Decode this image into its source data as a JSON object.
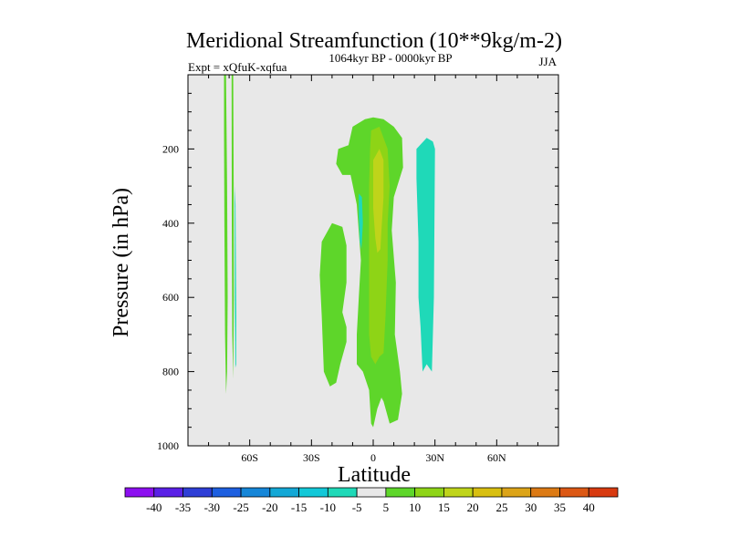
{
  "chart_data": {
    "type": "contour",
    "title": "Meridional Streamfunction (10**9kg/m-2)",
    "subtitle_left": "Expt = xQfuK-xqfua",
    "subtitle_center": "1064kyr BP - 0000kyr BP",
    "subtitle_right": "JJA",
    "xlabel": "Latitude",
    "ylabel": "Pressure (in hPa)",
    "xlim": [
      -90,
      90
    ],
    "ylim": [
      1000,
      0
    ],
    "x_ticks": [
      {
        "value": -60,
        "label": "60S"
      },
      {
        "value": -30,
        "label": "30S"
      },
      {
        "value": 0,
        "label": "0"
      },
      {
        "value": 30,
        "label": "30N"
      },
      {
        "value": 60,
        "label": "60N"
      }
    ],
    "y_ticks": [
      {
        "value": 200,
        "label": "200"
      },
      {
        "value": 400,
        "label": "400"
      },
      {
        "value": 600,
        "label": "600"
      },
      {
        "value": 800,
        "label": "800"
      },
      {
        "value": 1000,
        "label": "1000"
      }
    ],
    "background_color": "#e8e8e8",
    "colorbar": {
      "labels": [
        "-40",
        "-35",
        "-30",
        "-25",
        "-20",
        "-15",
        "-10",
        "-5",
        "5",
        "10",
        "15",
        "20",
        "25",
        "30",
        "35",
        "40"
      ],
      "colors": [
        "#8c0ff0",
        "#5a20e6",
        "#2e3ed6",
        "#1d5fe0",
        "#1586d8",
        "#13a8d6",
        "#12c8d8",
        "#1fd9b8",
        "#e8e8e8",
        "#5ed62a",
        "#8ed416",
        "#bfd41a",
        "#d8bf10",
        "#dca418",
        "#dc7a14",
        "#dc5814",
        "#d83a10"
      ]
    },
    "regions": [
      {
        "level": 5,
        "color": "#5ed62a",
        "points": [
          [
            -72.5,
            0
          ],
          [
            -71.5,
            0
          ],
          [
            -71,
            300
          ],
          [
            -70.7,
            600
          ],
          [
            -71,
            800
          ],
          [
            -71.5,
            860
          ],
          [
            -72,
            700
          ],
          [
            -72.3,
            400
          ],
          [
            -72.5,
            150
          ]
        ]
      },
      {
        "level": 5,
        "color": "#5ed62a",
        "points": [
          [
            -68.8,
            0
          ],
          [
            -68,
            0
          ],
          [
            -67.8,
            300
          ],
          [
            -67.7,
            600
          ],
          [
            -68,
            820
          ],
          [
            -68.5,
            700
          ],
          [
            -68.7,
            400
          ]
        ]
      },
      {
        "level": -5,
        "color": "#1fd9b8",
        "points": [
          [
            -67.3,
            300
          ],
          [
            -66.9,
            350
          ],
          [
            -66.5,
            650
          ],
          [
            -66.6,
            780
          ],
          [
            -67,
            790
          ],
          [
            -67.2,
            600
          ]
        ]
      },
      {
        "level": 5,
        "color": "#5ed62a",
        "points": [
          [
            -17,
            200
          ],
          [
            -12,
            190
          ],
          [
            -10,
            140
          ],
          [
            -4,
            120
          ],
          [
            0,
            115
          ],
          [
            5,
            120
          ],
          [
            10,
            140
          ],
          [
            14,
            170
          ],
          [
            14.5,
            250
          ],
          [
            10,
            330
          ],
          [
            9,
            420
          ],
          [
            11,
            560
          ],
          [
            10.5,
            700
          ],
          [
            13,
            800
          ],
          [
            14,
            860
          ],
          [
            12,
            930
          ],
          [
            8,
            940
          ],
          [
            5,
            880
          ],
          [
            4,
            870
          ],
          [
            2,
            900
          ],
          [
            0,
            950
          ],
          [
            -1,
            940
          ],
          [
            -2,
            850
          ],
          [
            -5,
            800
          ],
          [
            -8,
            780
          ],
          [
            -8,
            700
          ],
          [
            -7,
            600
          ],
          [
            -6,
            500
          ],
          [
            -8,
            350
          ],
          [
            -11,
            270
          ],
          [
            -15,
            270
          ],
          [
            -18,
            240
          ]
        ]
      },
      {
        "level": 5,
        "color": "#5ed62a",
        "points": [
          [
            -25,
            450
          ],
          [
            -20,
            400
          ],
          [
            -15,
            410
          ],
          [
            -13,
            460
          ],
          [
            -13,
            560
          ],
          [
            -15,
            640
          ],
          [
            -13,
            680
          ],
          [
            -13,
            720
          ],
          [
            -16,
            780
          ],
          [
            -18,
            830
          ],
          [
            -21,
            840
          ],
          [
            -24,
            800
          ],
          [
            -25,
            650
          ],
          [
            -26,
            540
          ]
        ]
      },
      {
        "level": -5,
        "color": "#1fd9b8",
        "points": [
          [
            -7,
            320
          ],
          [
            -5.5,
            330
          ],
          [
            -5,
            400
          ],
          [
            -5.7,
            470
          ],
          [
            -6.5,
            450
          ],
          [
            -7,
            380
          ]
        ]
      },
      {
        "level": -5,
        "color": "#1fd9b8",
        "points": [
          [
            21,
            200
          ],
          [
            26,
            170
          ],
          [
            29,
            180
          ],
          [
            30,
            200
          ],
          [
            29.5,
            600
          ],
          [
            28.5,
            800
          ],
          [
            26,
            780
          ],
          [
            24,
            800
          ],
          [
            23,
            680
          ],
          [
            22,
            600
          ],
          [
            22,
            450
          ],
          [
            21,
            280
          ]
        ]
      },
      {
        "level": 10,
        "color": "#8ed416",
        "points": [
          [
            -1,
            150
          ],
          [
            3,
            140
          ],
          [
            5,
            170
          ],
          [
            7,
            200
          ],
          [
            8,
            300
          ],
          [
            7,
            400
          ],
          [
            7,
            500
          ],
          [
            6,
            650
          ],
          [
            5,
            750
          ],
          [
            3,
            760
          ],
          [
            1,
            780
          ],
          [
            -1,
            760
          ],
          [
            -2,
            700
          ],
          [
            -2,
            500
          ],
          [
            -2,
            300
          ],
          [
            -1.5,
            200
          ]
        ]
      },
      {
        "level": 15,
        "color": "#bfd41a",
        "points": [
          [
            0,
            230
          ],
          [
            3,
            200
          ],
          [
            5,
            230
          ],
          [
            5,
            330
          ],
          [
            4,
            420
          ],
          [
            3.5,
            470
          ],
          [
            2,
            480
          ],
          [
            1,
            440
          ],
          [
            0,
            360
          ]
        ]
      }
    ]
  }
}
